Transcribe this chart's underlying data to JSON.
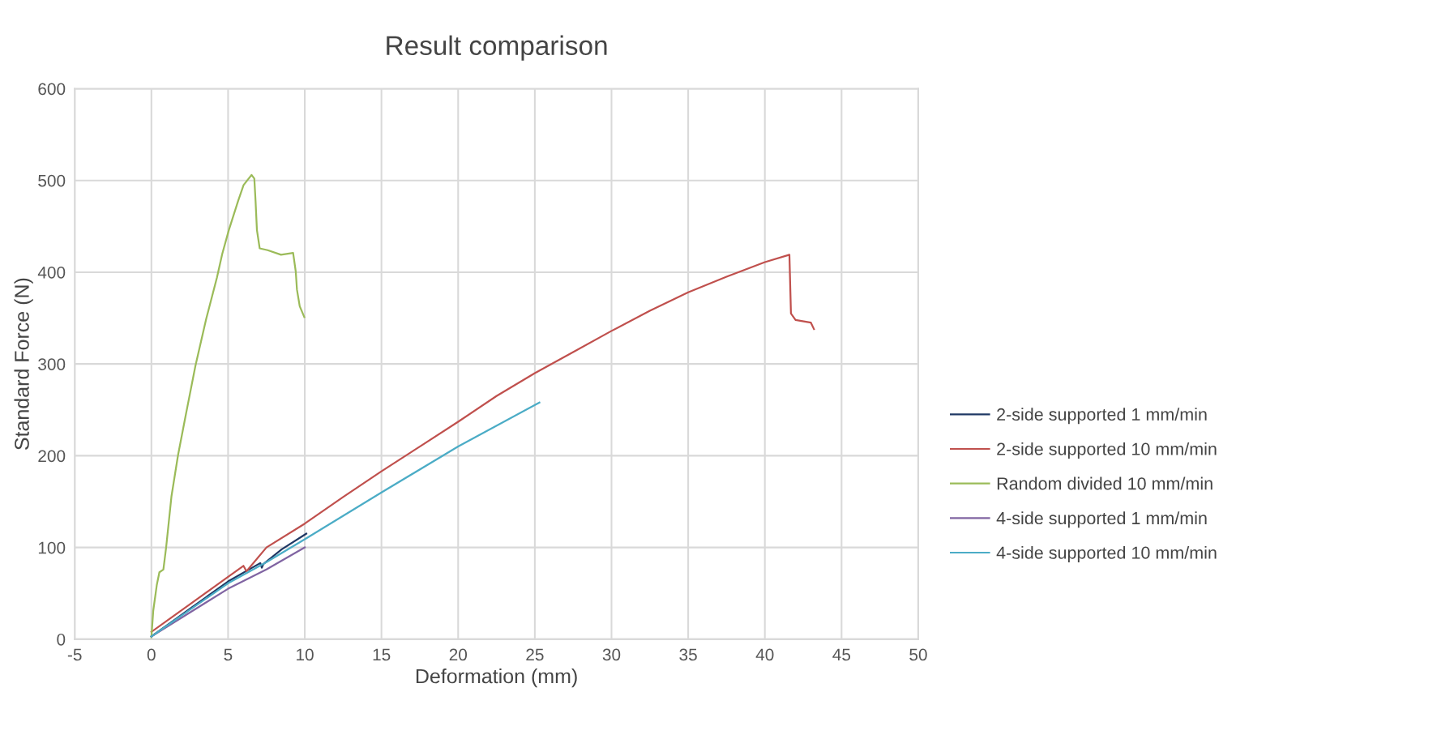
{
  "chart_data": {
    "type": "line",
    "title": "Result comparison",
    "xlabel": "Deformation (mm)",
    "ylabel": "Standard Force (N)",
    "xlim": [
      -5,
      50
    ],
    "xticks": [
      -5,
      0,
      5,
      10,
      15,
      20,
      25,
      30,
      35,
      40,
      45,
      50
    ],
    "ylim": [
      0,
      600
    ],
    "yticks": [
      0,
      100,
      200,
      300,
      400,
      500,
      600
    ],
    "grid": true,
    "legend": "right",
    "marker": "none",
    "line_style": "solid",
    "series": [
      {
        "name": "2-side supported 1 mm/min",
        "color": "#1f3864",
        "x": [
          0,
          2.5,
          5,
          7.1,
          7.2,
          7.3,
          8.5,
          10.1
        ],
        "values": [
          3,
          33,
          63,
          83,
          78,
          82,
          98,
          115
        ]
      },
      {
        "name": "2-side supported 10 mm/min",
        "color": "#c0504d",
        "x": [
          0,
          2.5,
          5,
          6.0,
          6.2,
          7.5,
          10,
          12.5,
          15,
          17.5,
          20,
          22.5,
          25,
          27.5,
          30,
          32.5,
          35,
          37.5,
          40,
          41.6,
          41.7,
          42,
          43,
          43.2
        ],
        "values": [
          8,
          38,
          68,
          80,
          74,
          100,
          126,
          155,
          183,
          210,
          237,
          265,
          290,
          313,
          336,
          358,
          378,
          395,
          411,
          419,
          355,
          348,
          345,
          338
        ]
      },
      {
        "name": "Random divided 10 mm/min",
        "color": "#9bbb59",
        "x": [
          0,
          0.12,
          0.35,
          0.52,
          0.78,
          0.96,
          1.31,
          1.74,
          2.26,
          2.87,
          3.57,
          4.27,
          4.62,
          5.05,
          5.66,
          6.01,
          6.53,
          6.71,
          6.79,
          6.88,
          7.06,
          7.58,
          8.45,
          9.24,
          9.41,
          9.49,
          9.67,
          9.97
        ],
        "values": [
          2,
          31,
          59,
          73,
          76,
          100,
          156,
          201,
          246,
          298,
          349,
          394,
          420,
          446,
          478,
          495,
          506,
          502,
          478,
          446,
          426,
          424,
          419,
          421,
          401,
          381,
          363,
          351
        ]
      },
      {
        "name": "4-side supported 1 mm/min",
        "color": "#8064a2",
        "x": [
          0,
          2.5,
          5,
          7.5,
          10
        ],
        "values": [
          3,
          29,
          55,
          76,
          100
        ]
      },
      {
        "name": "4-side supported 10 mm/min",
        "color": "#4bacc6",
        "x": [
          0,
          2.5,
          5,
          7.5,
          10,
          15,
          20,
          25.3
        ],
        "values": [
          3,
          32,
          61,
          84,
          109,
          160,
          210,
          258
        ]
      }
    ]
  }
}
